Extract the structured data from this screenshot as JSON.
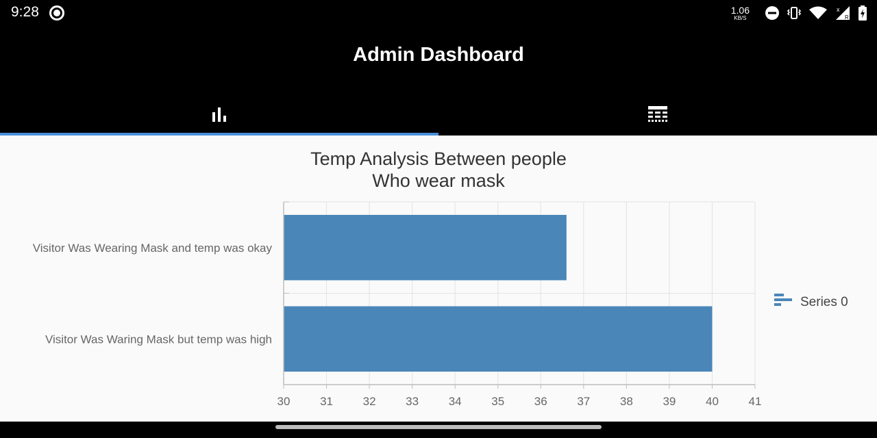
{
  "status_bar": {
    "time": "9:28",
    "net_speed": "1.06",
    "net_unit": "KB/S",
    "sim_x": "x",
    "sim_r": "R"
  },
  "app_bar": {
    "title": "Admin Dashboard",
    "tabs": [
      {
        "icon": "bar-chart-icon",
        "active": true
      },
      {
        "icon": "table-icon",
        "active": false
      }
    ],
    "indicator_color": "#4a8ed8"
  },
  "chart_data": {
    "type": "bar",
    "orientation": "horizontal",
    "title": [
      "Temp Analysis Between people",
      "Who wear mask"
    ],
    "categories": [
      "Visitor Was Wearing Mask and temp was okay",
      "Visitor Was Waring Mask but temp was high"
    ],
    "series": [
      {
        "name": "Series 0",
        "values": [
          36.6,
          40.0
        ],
        "color": "#4a86b8"
      }
    ],
    "xlim": [
      30,
      41
    ],
    "ticks": [
      30,
      31,
      32,
      33,
      34,
      35,
      36,
      37,
      38,
      39,
      40,
      41
    ],
    "grid": true,
    "legend": "right"
  }
}
